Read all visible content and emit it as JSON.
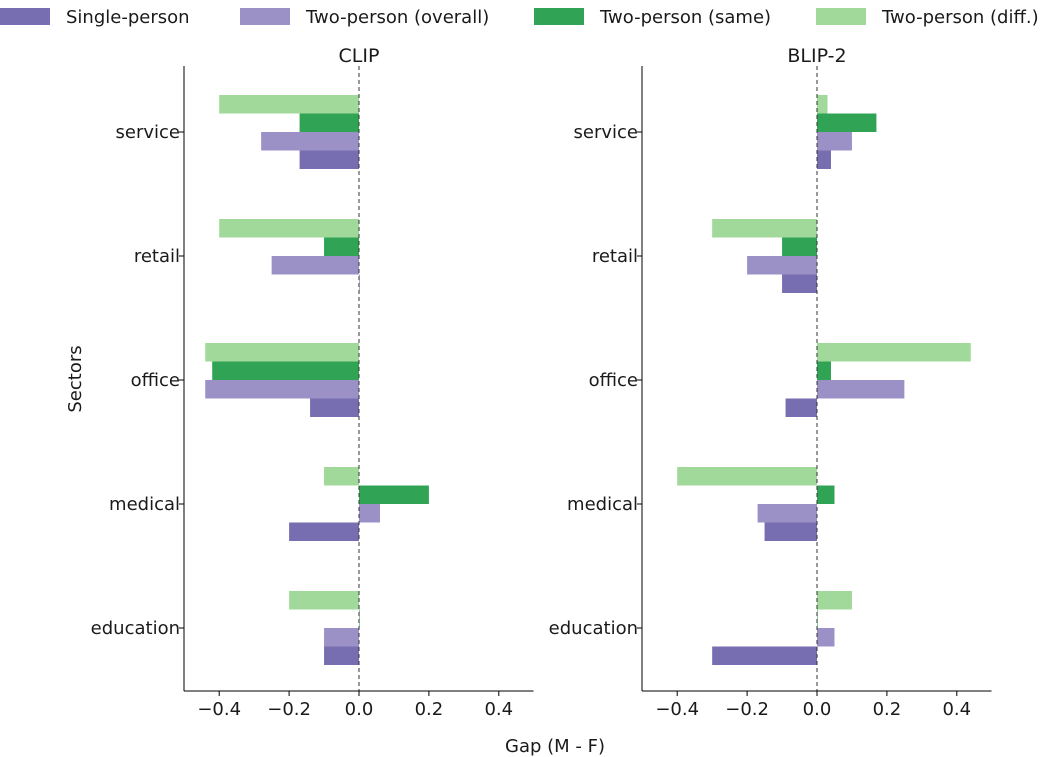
{
  "chart_data": {
    "type": "bar",
    "orientation": "horizontal",
    "categories": [
      "service",
      "retail",
      "office",
      "medical",
      "education"
    ],
    "series_order_bottom_to_top": [
      "Single-person",
      "Two-person (overall)",
      "Two-person (same)",
      "Two-person (diff.)"
    ],
    "legend": [
      {
        "name": "Single-person",
        "color": "#776eb2"
      },
      {
        "name": "Two-person (overall)",
        "color": "#9b91c7"
      },
      {
        "name": "Two-person (same)",
        "color": "#31a354"
      },
      {
        "name": "Two-person (diff.)",
        "color": "#a1d99b"
      }
    ],
    "legend_placement": "top",
    "ylabel": "Sectors",
    "xlabel": "Gap (M - F)",
    "xlim": [
      -0.5,
      0.5
    ],
    "xticks": [
      -0.4,
      -0.2,
      0.0,
      0.2,
      0.4
    ],
    "xtick_labels": [
      "−0.4",
      "−0.2",
      "0.0",
      "0.2",
      "0.4"
    ],
    "zero_line": "dashed",
    "grid": false,
    "panels": [
      {
        "title": "CLIP",
        "series": [
          {
            "name": "Single-person",
            "values": [
              -0.17,
              0.0,
              -0.14,
              -0.2,
              -0.1
            ]
          },
          {
            "name": "Two-person (overall)",
            "values": [
              -0.28,
              -0.25,
              -0.44,
              0.06,
              -0.1
            ]
          },
          {
            "name": "Two-person (same)",
            "values": [
              -0.17,
              -0.1,
              -0.42,
              0.2,
              0.0
            ]
          },
          {
            "name": "Two-person (diff.)",
            "values": [
              -0.4,
              -0.4,
              -0.44,
              -0.1,
              -0.2
            ]
          }
        ]
      },
      {
        "title": "BLIP-2",
        "series": [
          {
            "name": "Single-person",
            "values": [
              0.04,
              -0.1,
              -0.09,
              -0.15,
              -0.3
            ]
          },
          {
            "name": "Two-person (overall)",
            "values": [
              0.1,
              -0.2,
              0.25,
              -0.17,
              0.05
            ]
          },
          {
            "name": "Two-person (same)",
            "values": [
              0.17,
              -0.1,
              0.04,
              0.05,
              0.0
            ]
          },
          {
            "name": "Two-person (diff.)",
            "values": [
              0.03,
              -0.3,
              0.44,
              -0.4,
              0.1
            ]
          }
        ]
      }
    ]
  }
}
